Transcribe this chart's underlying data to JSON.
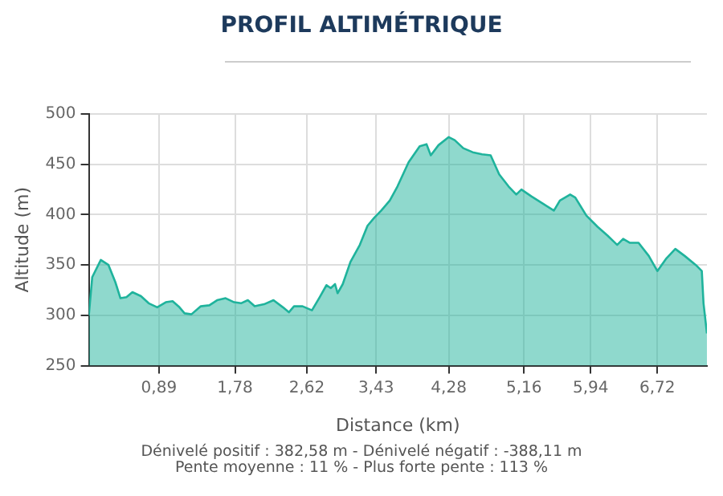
{
  "chart_data": {
    "type": "area",
    "title": "PROFIL ALTIMÉTRIQUE",
    "xlabel": "Distance (km)",
    "ylabel": "Altitude (m)",
    "annotations": [
      "Dénivelé positif : 382,58 m - Dénivelé négatif : -388,11 m",
      "Pente moyenne : 11 % - Plus forte pente : 113 %"
    ],
    "x": [
      0.07,
      0.11,
      0.21,
      0.3,
      0.38,
      0.44,
      0.51,
      0.58,
      0.68,
      0.77,
      0.87,
      0.97,
      1.05,
      1.13,
      1.19,
      1.27,
      1.38,
      1.48,
      1.57,
      1.67,
      1.77,
      1.85,
      1.93,
      2.01,
      2.12,
      2.23,
      2.34,
      2.41,
      2.47,
      2.57,
      2.68,
      2.77,
      2.85,
      2.9,
      2.95,
      2.98,
      3.04,
      3.13,
      3.24,
      3.33,
      3.41,
      3.49,
      3.59,
      3.68,
      3.81,
      3.94,
      4.02,
      4.07,
      4.16,
      4.28,
      4.35,
      4.45,
      4.56,
      4.67,
      4.77,
      4.87,
      4.98,
      5.07,
      5.13,
      5.25,
      5.38,
      5.51,
      5.58,
      5.7,
      5.76,
      5.89,
      6.02,
      6.14,
      6.25,
      6.32,
      6.4,
      6.5,
      6.62,
      6.72,
      6.82,
      6.93,
      7.04,
      7.17,
      7.24,
      7.26,
      7.3
    ],
    "series": [
      {
        "color": "#1fb39c",
        "values": [
          300,
          338,
          355,
          350,
          333,
          317,
          318,
          323,
          319,
          312,
          308,
          313,
          314,
          308,
          302,
          301,
          309,
          310,
          315,
          317,
          313,
          312,
          315,
          309,
          311,
          315,
          308,
          303,
          309,
          309,
          305,
          318,
          330,
          327,
          331,
          322,
          331,
          353,
          370,
          389,
          397,
          404,
          414,
          428,
          452,
          468,
          470,
          459,
          469,
          477,
          474,
          466,
          462,
          460,
          459,
          440,
          428,
          420,
          425,
          418,
          411,
          404,
          414,
          420,
          417,
          399,
          388,
          379,
          370,
          376,
          372,
          372,
          359,
          344,
          356,
          366,
          359,
          350,
          344,
          312,
          282
        ]
      }
    ],
    "xlim": [
      0.07,
      7.3
    ],
    "ylim": [
      250,
      500
    ],
    "xticks": [
      {
        "value": 0.89,
        "label": "0,89"
      },
      {
        "value": 1.78,
        "label": "1,78"
      },
      {
        "value": 2.62,
        "label": "2,62"
      },
      {
        "value": 3.43,
        "label": "3,43"
      },
      {
        "value": 4.28,
        "label": "4,28"
      },
      {
        "value": 5.16,
        "label": "5,16"
      },
      {
        "value": 5.94,
        "label": "5,94"
      },
      {
        "value": 6.72,
        "label": "6,72"
      }
    ],
    "yticks": [
      250,
      300,
      350,
      400,
      450,
      500
    ],
    "grid": true,
    "legend": false,
    "marker": "none"
  }
}
